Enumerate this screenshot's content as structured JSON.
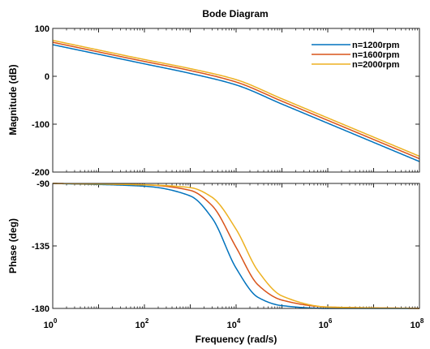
{
  "chart_data": {
    "type": "line",
    "title": "Bode Diagram",
    "xlabel": "Frequency  (rad/s)",
    "x_scale": "log",
    "xlim": [
      1,
      100000000
    ],
    "x_ticks": [
      {
        "value": 1,
        "base": "10",
        "exp": "0"
      },
      {
        "value": 100,
        "base": "10",
        "exp": "2"
      },
      {
        "value": 10000,
        "base": "10",
        "exp": "4"
      },
      {
        "value": 1000000,
        "base": "10",
        "exp": "6"
      },
      {
        "value": 100000000,
        "base": "10",
        "exp": "8"
      }
    ],
    "legend_position": "top-right",
    "grid": false,
    "panels": [
      {
        "name": "magnitude",
        "ylabel": "Magnitude (dB)",
        "ylim": [
          -200,
          100
        ],
        "y_ticks": [
          "100",
          "0",
          "-100",
          "-200"
        ],
        "y_tick_values": [
          100,
          0,
          -100,
          -200
        ]
      },
      {
        "name": "phase",
        "ylabel": "Phase (deg)",
        "ylim": [
          -180,
          -90
        ],
        "y_ticks": [
          "-90",
          "-135",
          "-180"
        ],
        "y_tick_values": [
          -90,
          -135,
          -180
        ]
      }
    ],
    "series": [
      {
        "name": "n=1200rpm",
        "color": "#0072BD",
        "magnitude": {
          "x": [
            1,
            100,
            1000,
            10000,
            100000,
            1000000,
            10000000,
            100000000
          ],
          "y": [
            66,
            26,
            6,
            -18,
            -58,
            -98,
            -138,
            -178
          ]
        },
        "phase": {
          "x": [
            1,
            100,
            1000,
            3000,
            10000,
            30000,
            100000,
            1000000,
            100000000
          ],
          "y": [
            -90,
            -92,
            -99,
            -115,
            -151,
            -172,
            -178,
            -180,
            -180
          ]
        }
      },
      {
        "name": "n=1600rpm",
        "color": "#D95319",
        "magnitude": {
          "x": [
            1,
            100,
            1000,
            10000,
            100000,
            1000000,
            10000000,
            100000000
          ],
          "y": [
            71,
            31,
            12,
            -12,
            -52,
            -92,
            -132,
            -172
          ]
        },
        "phase": {
          "x": [
            1,
            100,
            1000,
            3000,
            10000,
            30000,
            100000,
            1000000,
            100000000
          ],
          "y": [
            -90,
            -91,
            -95,
            -106,
            -136,
            -163,
            -174,
            -179,
            -180
          ]
        }
      },
      {
        "name": "n=2000rpm",
        "color": "#EDB120",
        "magnitude": {
          "x": [
            1,
            100,
            1000,
            10000,
            100000,
            1000000,
            10000000,
            100000000
          ],
          "y": [
            75,
            35,
            16,
            -7,
            -47,
            -87,
            -127,
            -167
          ]
        },
        "phase": {
          "x": [
            1,
            100,
            1000,
            3000,
            10000,
            30000,
            100000,
            1000000,
            100000000
          ],
          "y": [
            -90,
            -91,
            -93,
            -100,
            -123,
            -153,
            -171,
            -179,
            -180
          ]
        }
      }
    ]
  }
}
